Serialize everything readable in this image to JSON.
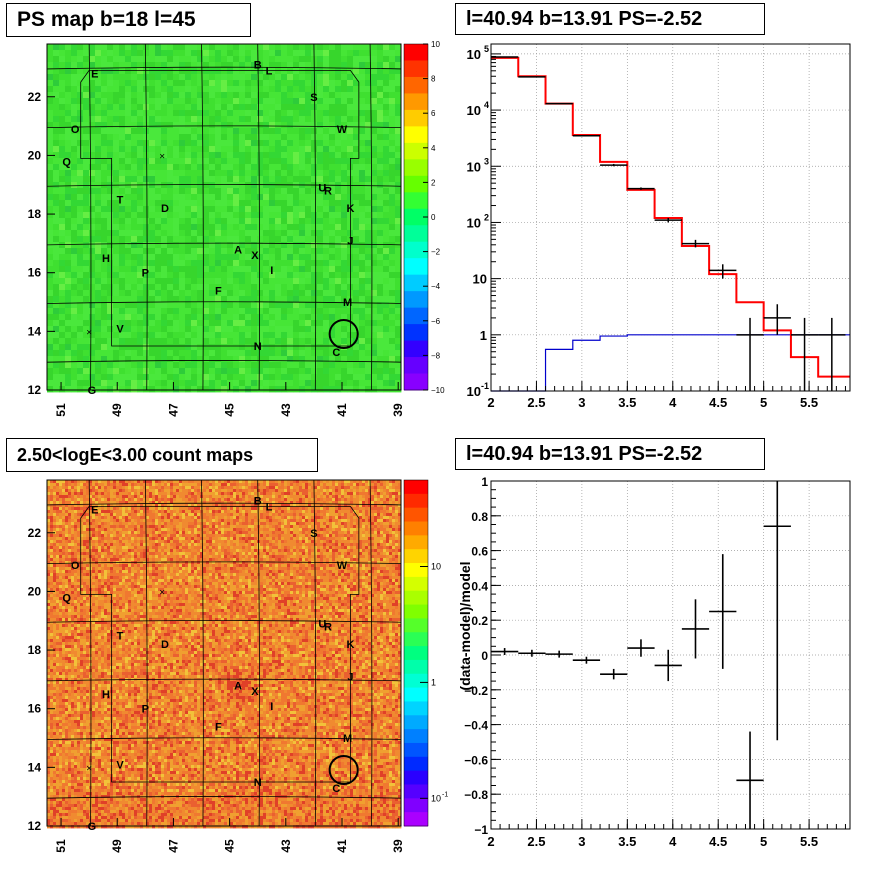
{
  "panels": {
    "tl_title": "PS map b=18 l=45",
    "tr_title": "l=40.94 b=13.91 PS=-2.52",
    "bl_title": "2.50<logE<3.00 count maps",
    "br_title": "l=40.94 b=13.91 PS=-2.52",
    "br_ylabel": "(data-model)/model"
  },
  "maps": {
    "x_ticks": [
      "51",
      "49",
      "47",
      "45",
      "43",
      "41",
      "39"
    ],
    "y_ticks": [
      "12",
      "14",
      "16",
      "18",
      "20",
      "22"
    ],
    "source_labels": [
      {
        "t": "E",
        "l": 49.8,
        "b": 22.8
      },
      {
        "t": "B",
        "l": 44.0,
        "b": 23.1
      },
      {
        "t": "L",
        "l": 43.6,
        "b": 22.9
      },
      {
        "t": "S",
        "l": 42.0,
        "b": 22.0
      },
      {
        "t": "W",
        "l": 41.0,
        "b": 20.9
      },
      {
        "t": "O",
        "l": 50.5,
        "b": 20.9
      },
      {
        "t": "Q",
        "l": 50.8,
        "b": 19.8
      },
      {
        "t": "U",
        "l": 41.7,
        "b": 18.9
      },
      {
        "t": "R",
        "l": 41.5,
        "b": 18.8
      },
      {
        "t": "T",
        "l": 48.9,
        "b": 18.5
      },
      {
        "t": "D",
        "l": 47.3,
        "b": 18.2
      },
      {
        "t": "K",
        "l": 40.7,
        "b": 18.2
      },
      {
        "t": "J",
        "l": 40.7,
        "b": 17.1
      },
      {
        "t": "A",
        "l": 44.7,
        "b": 16.8
      },
      {
        "t": "X",
        "l": 44.1,
        "b": 16.6
      },
      {
        "t": "H",
        "l": 49.4,
        "b": 16.5
      },
      {
        "t": "P",
        "l": 48.0,
        "b": 16.0
      },
      {
        "t": "I",
        "l": 43.5,
        "b": 16.1
      },
      {
        "t": "F",
        "l": 45.4,
        "b": 15.4
      },
      {
        "t": "M",
        "l": 40.8,
        "b": 15.0
      },
      {
        "t": "V",
        "l": 48.9,
        "b": 14.1
      },
      {
        "t": "N",
        "l": 44.0,
        "b": 13.5
      },
      {
        "t": "C",
        "l": 41.2,
        "b": 13.3
      },
      {
        "t": "G",
        "l": 49.9,
        "b": 12.0
      }
    ],
    "circle": {
      "l": 40.94,
      "b": 13.91,
      "r": 0.5
    },
    "crosses": [
      {
        "l": 47.4,
        "b": 20.0
      },
      {
        "l": 50.0,
        "b": 14.0
      }
    ],
    "ps_colorbar": {
      "ticks": [
        "10",
        "8",
        "6",
        "4",
        "2",
        "0",
        "−2",
        "−4",
        "−6",
        "−8",
        "−10"
      ]
    },
    "count_colorbar": {
      "ticks": [
        "10",
        "1"
      ],
      "minor_label": "10",
      "minor_exp": "-1"
    }
  },
  "chart_data": [
    {
      "type": "heatmap",
      "title": "PS map b=18 l=45",
      "xlim": [
        51.5,
        38.9
      ],
      "ylim": [
        12,
        23.8
      ],
      "zlim": [
        -10,
        10
      ]
    },
    {
      "type": "line",
      "title": "l=40.94 b=13.91 PS=-2.52",
      "xlim": [
        2,
        5.95
      ],
      "ylim": [
        0.1,
        150000
      ],
      "yscale": "log",
      "x_ticks": [
        "2",
        "2.5",
        "3",
        "3.5",
        "4",
        "4.5",
        "5",
        "5.5"
      ],
      "y_ticks": [
        "10^-1",
        "1",
        "10",
        "10^2",
        "10^3",
        "10^4",
        "10^5"
      ],
      "grid": true,
      "series": [
        {
          "color": "#ff0000",
          "bin_edges": [
            2,
            2.3,
            2.6,
            2.9,
            3.2,
            3.5,
            3.8,
            4.1,
            4.4,
            4.7,
            5.0,
            5.3,
            5.6,
            5.95
          ],
          "values": [
            85000,
            40000,
            13000,
            3600,
            1200,
            380,
            120,
            38,
            12,
            3.8,
            1.2,
            0.4,
            0.18
          ]
        },
        {
          "color": "#0000cc",
          "bin_edges": [
            2,
            2.3,
            2.6,
            2.9,
            3.2,
            3.5,
            3.8,
            4.1,
            4.4,
            4.7,
            5.0,
            5.3,
            5.6,
            5.95
          ],
          "values": [
            0.1,
            0.1,
            0.55,
            0.8,
            0.95,
            1,
            1,
            1,
            1,
            1,
            1,
            1,
            1
          ]
        },
        {
          "color": "#000000",
          "points": [
            {
              "x": 2.15,
              "y": 88000,
              "xerr": 0.15,
              "ylo": 87000,
              "yhi": 89000
            },
            {
              "x": 2.45,
              "y": 39000,
              "xerr": 0.15,
              "ylo": 38500,
              "yhi": 39500
            },
            {
              "x": 2.75,
              "y": 13000,
              "xerr": 0.15,
              "ylo": 12800,
              "yhi": 13200
            },
            {
              "x": 3.05,
              "y": 3500,
              "xerr": 0.15,
              "ylo": 3400,
              "yhi": 3600
            },
            {
              "x": 3.35,
              "y": 1050,
              "xerr": 0.15,
              "ylo": 1000,
              "yhi": 1100
            },
            {
              "x": 3.65,
              "y": 400,
              "xerr": 0.15,
              "ylo": 380,
              "yhi": 420
            },
            {
              "x": 3.95,
              "y": 110,
              "xerr": 0.15,
              "ylo": 100,
              "yhi": 120
            },
            {
              "x": 4.25,
              "y": 42,
              "xerr": 0.15,
              "ylo": 36,
              "yhi": 49
            },
            {
              "x": 4.55,
              "y": 14,
              "xerr": 0.15,
              "ylo": 10,
              "yhi": 18
            },
            {
              "x": 4.85,
              "y": 1,
              "xerr": 0.15,
              "ylo": 0.1,
              "yhi": 2
            },
            {
              "x": 5.15,
              "y": 2,
              "xerr": 0.15,
              "ylo": 1,
              "yhi": 3.5
            },
            {
              "x": 5.45,
              "y": 1,
              "xerr": 0.15,
              "ylo": 0.1,
              "yhi": 2
            },
            {
              "x": 5.75,
              "y": 1,
              "xerr": 0.15,
              "ylo": 0.1,
              "yhi": 2
            }
          ]
        }
      ]
    },
    {
      "type": "heatmap",
      "title": "2.50<logE<3.00 count maps",
      "xlim": [
        51.5,
        38.9
      ],
      "ylim": [
        12,
        23.8
      ],
      "zscale": "log"
    },
    {
      "type": "scatter",
      "title": "l=40.94 b=13.91 PS=-2.52",
      "ylabel": "(data-model)/model",
      "xlim": [
        2,
        5.95
      ],
      "ylim": [
        -1,
        1
      ],
      "x_ticks": [
        "2",
        "2.5",
        "3",
        "3.5",
        "4",
        "4.5",
        "5",
        "5.5"
      ],
      "y_ticks": [
        "−1",
        "−0.8",
        "−0.6",
        "−0.4",
        "−0.2",
        "0",
        "0.2",
        "0.4",
        "0.6",
        "0.8",
        "1"
      ],
      "grid": true,
      "points": [
        {
          "x": 2.15,
          "y": 0.02,
          "xerr": 0.15,
          "ylo": 0.0,
          "yhi": 0.04
        },
        {
          "x": 2.45,
          "y": 0.01,
          "xerr": 0.15,
          "ylo": -0.01,
          "yhi": 0.03
        },
        {
          "x": 2.75,
          "y": 0.005,
          "xerr": 0.15,
          "ylo": -0.015,
          "yhi": 0.025
        },
        {
          "x": 3.05,
          "y": -0.03,
          "xerr": 0.15,
          "ylo": -0.05,
          "yhi": -0.01
        },
        {
          "x": 3.35,
          "y": -0.11,
          "xerr": 0.15,
          "ylo": -0.14,
          "yhi": -0.08
        },
        {
          "x": 3.65,
          "y": 0.04,
          "xerr": 0.15,
          "ylo": -0.01,
          "yhi": 0.09
        },
        {
          "x": 3.95,
          "y": -0.06,
          "xerr": 0.15,
          "ylo": -0.15,
          "yhi": 0.03
        },
        {
          "x": 4.25,
          "y": 0.15,
          "xerr": 0.15,
          "ylo": -0.02,
          "yhi": 0.32
        },
        {
          "x": 4.55,
          "y": 0.25,
          "xerr": 0.15,
          "ylo": -0.08,
          "yhi": 0.58
        },
        {
          "x": 4.85,
          "y": -0.72,
          "xerr": 0.15,
          "ylo": -1.0,
          "yhi": -0.44
        },
        {
          "x": 5.15,
          "y": 0.74,
          "xerr": 0.15,
          "ylo": -0.49,
          "yhi": 1.0
        }
      ]
    }
  ]
}
